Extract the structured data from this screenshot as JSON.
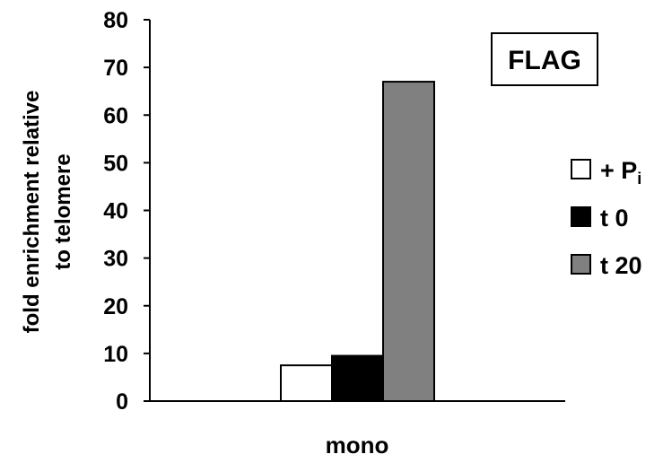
{
  "chart_data": {
    "type": "bar",
    "categories": [
      "mono"
    ],
    "series": [
      {
        "name": "+ P",
        "subscript": "i",
        "values": [
          7.5
        ],
        "color": "#ffffff"
      },
      {
        "name": "t 0",
        "values": [
          9.5
        ],
        "color": "#000000"
      },
      {
        "name": "t 20",
        "values": [
          67
        ],
        "color": "#808080"
      }
    ],
    "ylabel_lines": [
      "fold enrichment relative",
      "to telomere"
    ],
    "xlabel": "mono",
    "ylim": [
      0,
      80
    ],
    "yticks": [
      0,
      10,
      20,
      30,
      40,
      50,
      60,
      70,
      80
    ],
    "grid": false,
    "legend_position": "right",
    "annotation": "FLAG"
  }
}
